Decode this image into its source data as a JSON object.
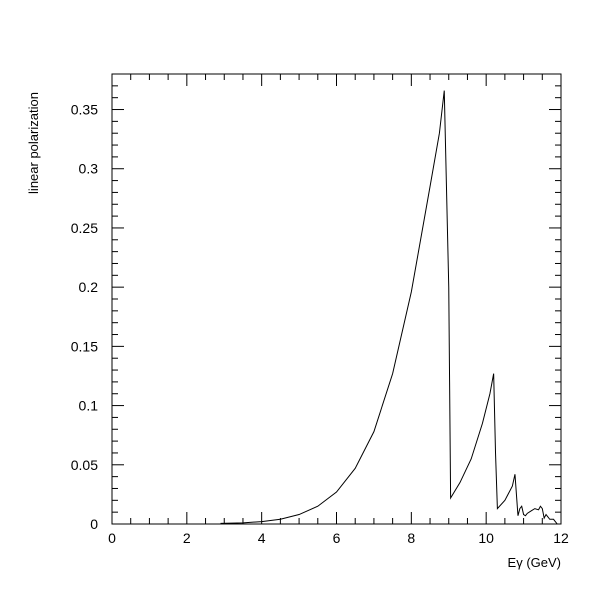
{
  "chart_data": {
    "type": "line",
    "xlabel": "Eγ (GeV)",
    "ylabel": "linear polarization",
    "xlim": [
      0,
      12
    ],
    "ylim": [
      0,
      0.38
    ],
    "x_ticks": [
      "0",
      "2",
      "4",
      "6",
      "8",
      "10",
      "12"
    ],
    "y_ticks": [
      "0",
      "0.05",
      "0.1",
      "0.15",
      "0.2",
      "0.25",
      "0.3",
      "0.35"
    ],
    "y_tick_values": [
      0,
      0.05,
      0.1,
      0.15,
      0.2,
      0.25,
      0.3,
      0.35
    ],
    "grid": false,
    "series": [
      {
        "x": [
          2.9,
          3.5,
          4.0,
          4.5,
          5.0,
          5.5,
          6.0,
          6.5,
          7.0,
          7.5,
          8.0,
          8.5,
          8.75,
          8.88,
          9.0,
          9.05,
          9.3,
          9.6,
          9.9,
          10.1,
          10.2,
          10.25,
          10.3,
          10.5,
          10.7,
          10.77,
          10.82,
          10.85,
          10.9,
          10.95,
          11.0,
          11.05,
          11.1,
          11.2,
          11.3,
          11.4,
          11.45,
          11.5,
          11.55,
          11.6,
          11.7,
          11.8,
          11.85,
          11.9
        ],
        "y": [
          0.0005,
          0.001,
          0.002,
          0.004,
          0.008,
          0.015,
          0.027,
          0.047,
          0.078,
          0.127,
          0.196,
          0.285,
          0.33,
          0.366,
          0.2,
          0.022,
          0.035,
          0.055,
          0.085,
          0.11,
          0.127,
          0.06,
          0.013,
          0.02,
          0.032,
          0.042,
          0.02,
          0.007,
          0.013,
          0.015,
          0.008,
          0.007,
          0.009,
          0.011,
          0.013,
          0.012,
          0.015,
          0.013,
          0.005,
          0.008,
          0.004,
          0.004,
          0.002,
          0.0
        ]
      }
    ]
  }
}
